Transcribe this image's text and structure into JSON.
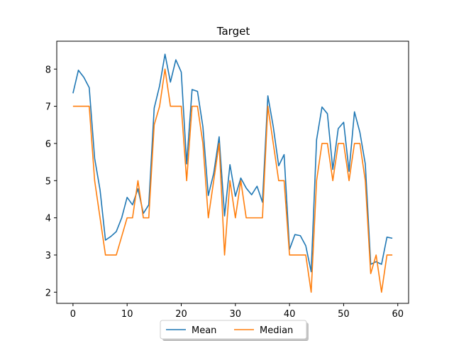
{
  "chart_data": {
    "type": "line",
    "title": "Target",
    "xlabel": "",
    "ylabel": "",
    "xlim": [
      -3,
      62
    ],
    "ylim": [
      1.7,
      8.75
    ],
    "xticks": [
      0,
      10,
      20,
      30,
      40,
      50,
      60
    ],
    "yticks": [
      2,
      3,
      4,
      5,
      6,
      7,
      8
    ],
    "grid": false,
    "legend_position": "bottom-center",
    "x": [
      0,
      1,
      2,
      3,
      4,
      5,
      6,
      7,
      8,
      9,
      10,
      11,
      12,
      13,
      14,
      15,
      16,
      17,
      18,
      19,
      20,
      21,
      22,
      23,
      24,
      25,
      26,
      27,
      28,
      29,
      30,
      31,
      32,
      33,
      34,
      35,
      36,
      37,
      38,
      39,
      40,
      41,
      42,
      43,
      44,
      45,
      46,
      47,
      48,
      49,
      50,
      51,
      52,
      53,
      54,
      55,
      56,
      57,
      58,
      59
    ],
    "series": [
      {
        "name": "Mean",
        "color": "#1f77b4",
        "values": [
          7.35,
          7.97,
          7.78,
          7.5,
          5.6,
          4.75,
          3.4,
          3.5,
          3.63,
          4.0,
          4.55,
          4.35,
          4.78,
          4.12,
          4.35,
          6.95,
          7.55,
          8.4,
          7.65,
          8.25,
          7.92,
          5.45,
          7.45,
          7.4,
          6.45,
          4.6,
          5.2,
          6.18,
          4.05,
          5.43,
          4.58,
          5.07,
          4.8,
          4.62,
          4.85,
          4.42,
          7.28,
          6.45,
          5.4,
          5.7,
          3.15,
          3.55,
          3.52,
          3.25,
          2.55,
          6.1,
          6.98,
          6.8,
          5.3,
          6.4,
          6.57,
          5.25,
          6.85,
          6.3,
          5.45,
          2.75,
          2.82,
          2.75,
          3.48,
          3.45
        ]
      },
      {
        "name": "Median",
        "color": "#ff7f0e",
        "values": [
          7,
          7,
          7,
          7,
          5,
          4,
          3,
          3,
          3,
          3.5,
          4,
          4,
          5,
          4,
          4,
          6.5,
          7,
          8,
          7,
          7,
          7,
          5,
          7,
          7,
          6,
          4,
          5,
          6,
          3,
          5,
          4,
          5,
          4,
          4,
          4,
          4,
          7,
          6,
          5,
          5,
          3,
          3,
          3,
          3,
          2,
          5,
          6,
          6,
          5,
          6,
          6,
          5,
          6,
          6,
          5,
          2.5,
          3,
          2,
          3,
          3
        ]
      }
    ]
  }
}
